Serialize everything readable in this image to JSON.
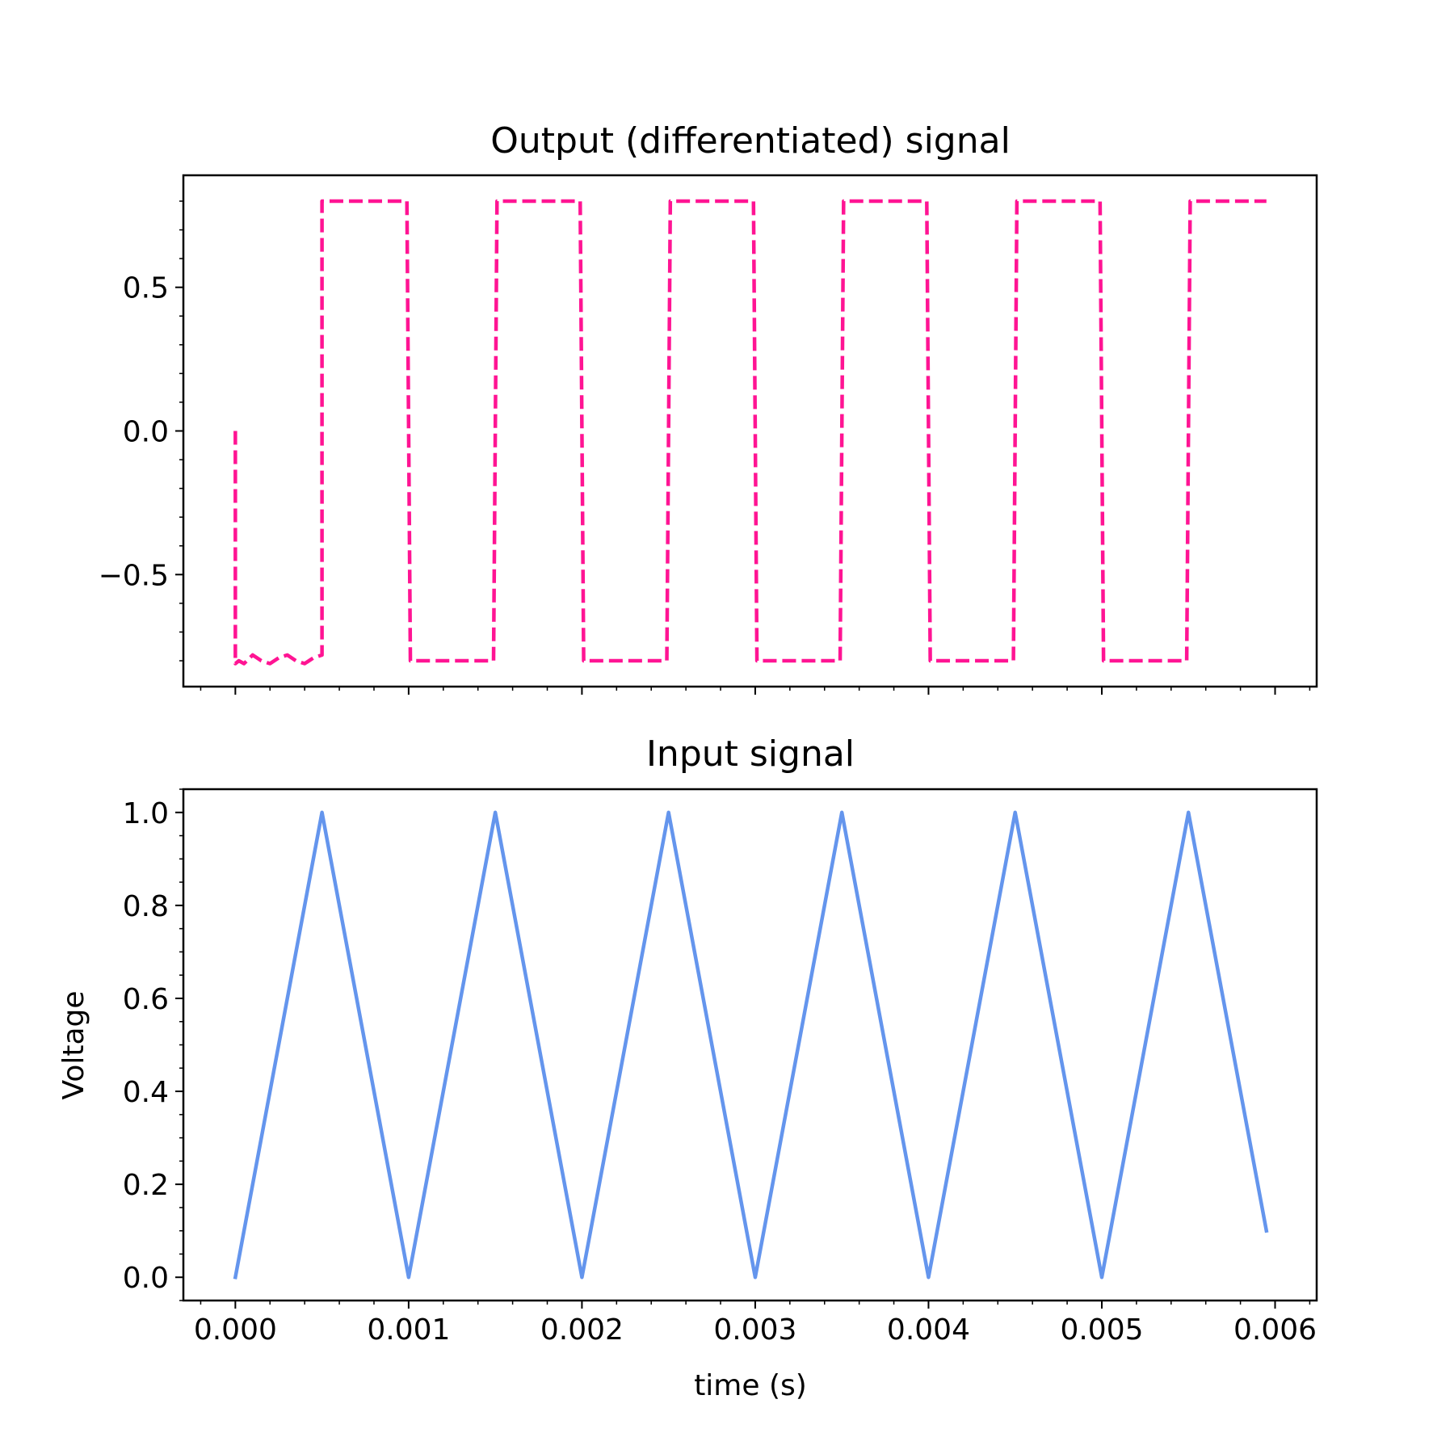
{
  "chart_data": [
    {
      "type": "line",
      "title": "Output (differentiated) signal",
      "xlabel": "",
      "ylabel": "",
      "xlim": [
        -0.0003,
        0.00624
      ],
      "ylim": [
        -0.89,
        0.89
      ],
      "yticks": [
        0.5,
        0.0,
        -0.5
      ],
      "ytick_labels": [
        "0.5",
        "0.0",
        "−0.5"
      ],
      "yminor_step": 0.1,
      "xtick_labels_visible": false,
      "grid": false,
      "series": [
        {
          "color": "#ff1493",
          "linestyle": "dashed",
          "x": [
            0,
            0,
            2e-05,
            5e-05,
            0.0001,
            0.00015,
            0.0002,
            0.00025,
            0.0003,
            0.00035,
            0.0004,
            0.00045,
            0.0005,
            0.0005,
            0.00099,
            0.00101,
            0.00149,
            0.00151,
            0.00199,
            0.00201,
            0.00249,
            0.00251,
            0.00299,
            0.00301,
            0.00349,
            0.00351,
            0.00399,
            0.00401,
            0.00449,
            0.00451,
            0.00499,
            0.00501,
            0.00549,
            0.00551,
            0.00595
          ],
          "y": [
            0,
            -0.81,
            -0.8,
            -0.81,
            -0.78,
            -0.8,
            -0.81,
            -0.79,
            -0.78,
            -0.8,
            -0.81,
            -0.79,
            -0.78,
            0.8,
            0.8,
            -0.8,
            -0.8,
            0.8,
            0.8,
            -0.8,
            -0.8,
            0.8,
            0.8,
            -0.8,
            -0.8,
            0.8,
            0.8,
            -0.8,
            -0.8,
            0.8,
            0.8,
            -0.8,
            -0.8,
            0.8,
            0.8
          ]
        }
      ]
    },
    {
      "type": "line",
      "title": "Input signal",
      "xlabel": "time (s)",
      "ylabel": "Voltage",
      "xlim": [
        -0.0003,
        0.00624
      ],
      "ylim": [
        -0.05,
        1.05
      ],
      "xticks": [
        0.0,
        0.001,
        0.002,
        0.003,
        0.004,
        0.005,
        0.006
      ],
      "xtick_labels": [
        "0.000",
        "0.001",
        "0.002",
        "0.003",
        "0.004",
        "0.005",
        "0.006"
      ],
      "xminor_step": 0.0002,
      "yticks": [
        0.0,
        0.2,
        0.4,
        0.6,
        0.8,
        1.0
      ],
      "ytick_labels": [
        "0.0",
        "0.2",
        "0.4",
        "0.6",
        "0.8",
        "1.0"
      ],
      "yminor_step": 0.05,
      "grid": false,
      "series": [
        {
          "color": "#6495ed",
          "linestyle": "solid",
          "x": [
            0,
            0.0005,
            0.001,
            0.0015,
            0.002,
            0.0025,
            0.003,
            0.0035,
            0.004,
            0.0045,
            0.005,
            0.0055,
            0.00595
          ],
          "y": [
            0,
            1,
            0,
            1,
            0,
            1,
            0,
            1,
            0,
            1,
            0,
            1,
            0.1
          ]
        }
      ]
    }
  ]
}
